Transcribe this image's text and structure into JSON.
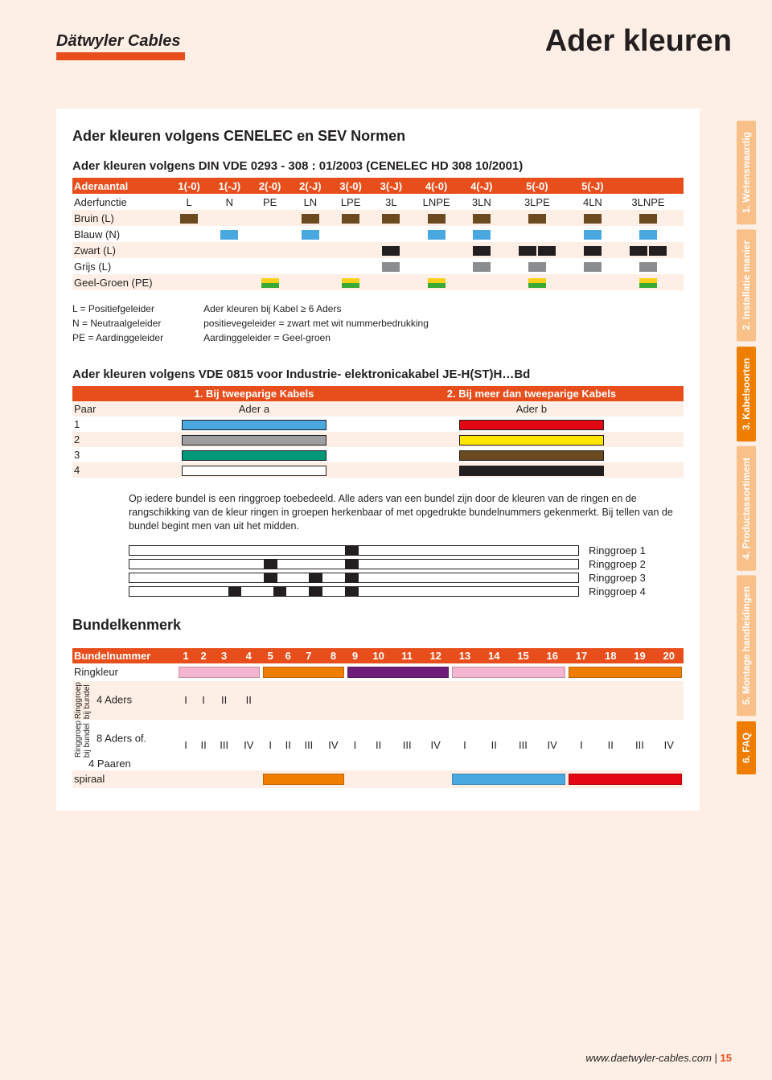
{
  "brand": "Dätwyler Cables",
  "page_title": "Ader kleuren",
  "section1_title": "Ader kleuren volgens CENELEC en SEV Normen",
  "section1_sub": "Ader kleuren volgens DIN VDE 0293 - 308 : 01/2003 (CENELEC HD 308 10/2001)",
  "t1": {
    "head_label": "Aderaantal",
    "cols": [
      "1(-0)",
      "1(-J)",
      "2(-0)",
      "2(-J)",
      "3(-0)",
      "3(-J)",
      "4(-0)",
      "4(-J)",
      "5(-0)",
      "5(-J)"
    ],
    "func_label": "Aderfunctie",
    "funcs": [
      "L",
      "N",
      "PE",
      "LN",
      "LPE",
      "3L",
      "LNPE",
      "3LN",
      "3LPE",
      "4LN",
      "3LNPE"
    ],
    "rows": [
      {
        "label": "Bruin (L)",
        "color": "#6b4a1f",
        "slots": [
          "s",
          "",
          "",
          "s",
          "s",
          "s",
          "s",
          "s",
          "s",
          "s",
          "s"
        ]
      },
      {
        "label": "Blauw (N)",
        "color": "#4aa8e0",
        "slots": [
          "",
          "s",
          "",
          "s",
          "",
          "",
          "s",
          "s",
          "",
          "s",
          "s"
        ]
      },
      {
        "label": "Zwart (L)",
        "color": "#231f20",
        "slots": [
          "",
          "",
          "",
          "",
          "",
          "s",
          "",
          "s",
          "p",
          "s",
          "p"
        ]
      },
      {
        "label": "Grijs (L)",
        "color": "#8a8c8e",
        "slots": [
          "",
          "",
          "",
          "",
          "",
          "s",
          "",
          "s",
          "s",
          "s",
          "s"
        ]
      },
      {
        "label": "Geel-Groen (PE)",
        "half": [
          "#f7d117",
          "#3aaa35"
        ],
        "slots": [
          "",
          "",
          "h",
          "",
          "h",
          "",
          "h",
          "",
          "h",
          "",
          "h"
        ]
      }
    ]
  },
  "legend": {
    "left": [
      "L  = Positiefgeleider",
      "N  = Neutraalgeleider",
      "PE = Aardinggeleider"
    ],
    "right": [
      "Ader kleuren bij Kabel ≥ 6 Aders",
      "positievegeleider = zwart met wit nummerbedrukking",
      "Aardinggeleider = Geel-groen"
    ]
  },
  "section2_title": "Ader kleuren volgens VDE 0815 voor Industrie- elektronicakabel JE-H(ST)H…Bd",
  "t2": {
    "col1": "1. Bij tweeparige Kabels",
    "col2": "2. Bij meer dan tweeparige Kabels",
    "paar": "Paar",
    "a": "Ader a",
    "b": "Ader b",
    "rows": [
      {
        "n": "1",
        "a": "#4aa8e0",
        "b": "#e30613"
      },
      {
        "n": "2",
        "a": "#9c9e9f",
        "b": "#ffe600"
      },
      {
        "n": "3",
        "a": "#009878",
        "b": "#6b4a1f"
      },
      {
        "n": "4",
        "a": "#ffffff",
        "b": "#231f20"
      }
    ]
  },
  "para": "Op iedere bundel is een ringgroep toebedeeld. Alle aders van een bundel zijn door de kleuren van de ringen en de rangschikking van de kleur ringen in groepen herkenbaar of met opgedrukte bundelnummers gekenmerkt. Bij tellen van de bundel begint men van uit het midden.",
  "ringgroups": [
    {
      "label": "Ringgroep 1",
      "blocks": [
        [
          48,
          3
        ]
      ]
    },
    {
      "label": "Ringgroep 2",
      "blocks": [
        [
          30,
          3
        ],
        [
          48,
          3
        ]
      ]
    },
    {
      "label": "Ringgroep 3",
      "blocks": [
        [
          30,
          3
        ],
        [
          40,
          3
        ],
        [
          48,
          3
        ]
      ]
    },
    {
      "label": "Ringgroep 4",
      "blocks": [
        [
          22,
          3
        ],
        [
          32,
          3
        ],
        [
          40,
          3
        ],
        [
          48,
          3
        ]
      ]
    }
  ],
  "section3_title": "Bundelkenmerk",
  "t3": {
    "head": "Bundelnummer",
    "nums": [
      "1",
      "2",
      "3",
      "4",
      "5",
      "6",
      "7",
      "8",
      "9",
      "10",
      "11",
      "12",
      "13",
      "14",
      "15",
      "16",
      "17",
      "18",
      "19",
      "20"
    ],
    "ringkleur_label": "Ringkleur",
    "ringkleur_colors": [
      "#f5b5d0",
      "#f5b5d0",
      "#f5b5d0",
      "#f5b5d0",
      "#ef7d00",
      "#ef7d00",
      "#ef7d00",
      "#ef7d00",
      "#6e1e78",
      "#6e1e78",
      "#6e1e78",
      "#6e1e78",
      "#f5b5d0",
      "#f5b5d0",
      "#f5b5d0",
      "#f5b5d0",
      "#ef7d00",
      "#ef7d00",
      "#ef7d00",
      "#ef7d00"
    ],
    "rg_label_top": "Ringgroep",
    "rg_label_bot": "bij bundel",
    "row4_label": "4 Aders",
    "row4": [
      "I",
      "I",
      "II",
      "II",
      "",
      "",
      "",
      "",
      "",
      "",
      "",
      "",
      "",
      "",
      "",
      "",
      "",
      "",
      "",
      ""
    ],
    "row8_label_a": "8 Aders of.",
    "row8_label_b": "4 Paaren",
    "row8": [
      "I",
      "II",
      "III",
      "IV",
      "I",
      "II",
      "III",
      "IV",
      "I",
      "II",
      "III",
      "IV",
      "I",
      "II",
      "III",
      "IV",
      "I",
      "II",
      "III",
      "IV"
    ],
    "spiraal_label": "spiraal",
    "spiraal": [
      "",
      "",
      "",
      "",
      "#ef7d00",
      "#ef7d00",
      "#ef7d00",
      "#ef7d00",
      "",
      "",
      "",
      "",
      "#4aa8e0",
      "#4aa8e0",
      "#4aa8e0",
      "#4aa8e0",
      "#e30613",
      "#e30613",
      "#e30613",
      "#e30613"
    ]
  },
  "tabs": [
    {
      "label": "1. Wetenswaardig",
      "color": "#f9c089"
    },
    {
      "label": "2. Installatie manier",
      "color": "#f9c089"
    },
    {
      "label": "3. Kabelsoorten",
      "color": "#ef7d00"
    },
    {
      "label": "4. Productassortiment",
      "color": "#f9c089"
    },
    {
      "label": "5. Montage handleidingen",
      "color": "#f9c089"
    },
    {
      "label": "6. FAQ",
      "color": "#ef7d00"
    }
  ],
  "footer_url": "www.daetwyler-cables.com",
  "footer_sep": " | ",
  "footer_page": "15"
}
